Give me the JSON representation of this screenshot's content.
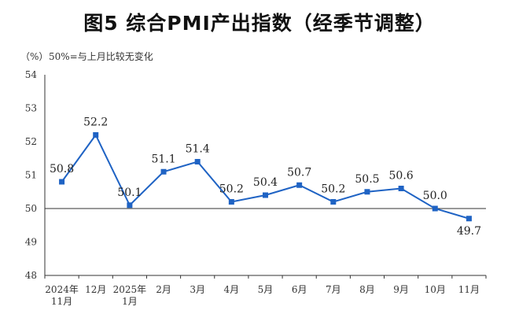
{
  "chart_data": {
    "type": "line",
    "title": "图5  综合PMI产出指数（经季节调整）",
    "unit_label": "（%）",
    "baseline_note": "50%=与上月比较无变化",
    "categories": [
      "2024年\n11月",
      "12月",
      "2025年\n1月",
      "2月",
      "3月",
      "4月",
      "5月",
      "6月",
      "7月",
      "8月",
      "9月",
      "10月",
      "11月"
    ],
    "series": [
      {
        "values": [
          50.8,
          52.2,
          50.1,
          51.1,
          51.4,
          50.2,
          50.4,
          50.7,
          50.2,
          50.5,
          50.6,
          50.0,
          49.7
        ],
        "labels": [
          "50.8",
          "52.2",
          "50.1",
          "51.1",
          "51.4",
          "50.2",
          "50.4",
          "50.7",
          "50.2",
          "50.5",
          "50.6",
          "50.0",
          "49.7"
        ],
        "color": "#1f63c4"
      }
    ],
    "ylim": [
      48,
      54
    ],
    "yticks": [
      "48",
      "49",
      "50",
      "51",
      "52",
      "53",
      "54"
    ],
    "reference_line": 50,
    "grid": false
  }
}
